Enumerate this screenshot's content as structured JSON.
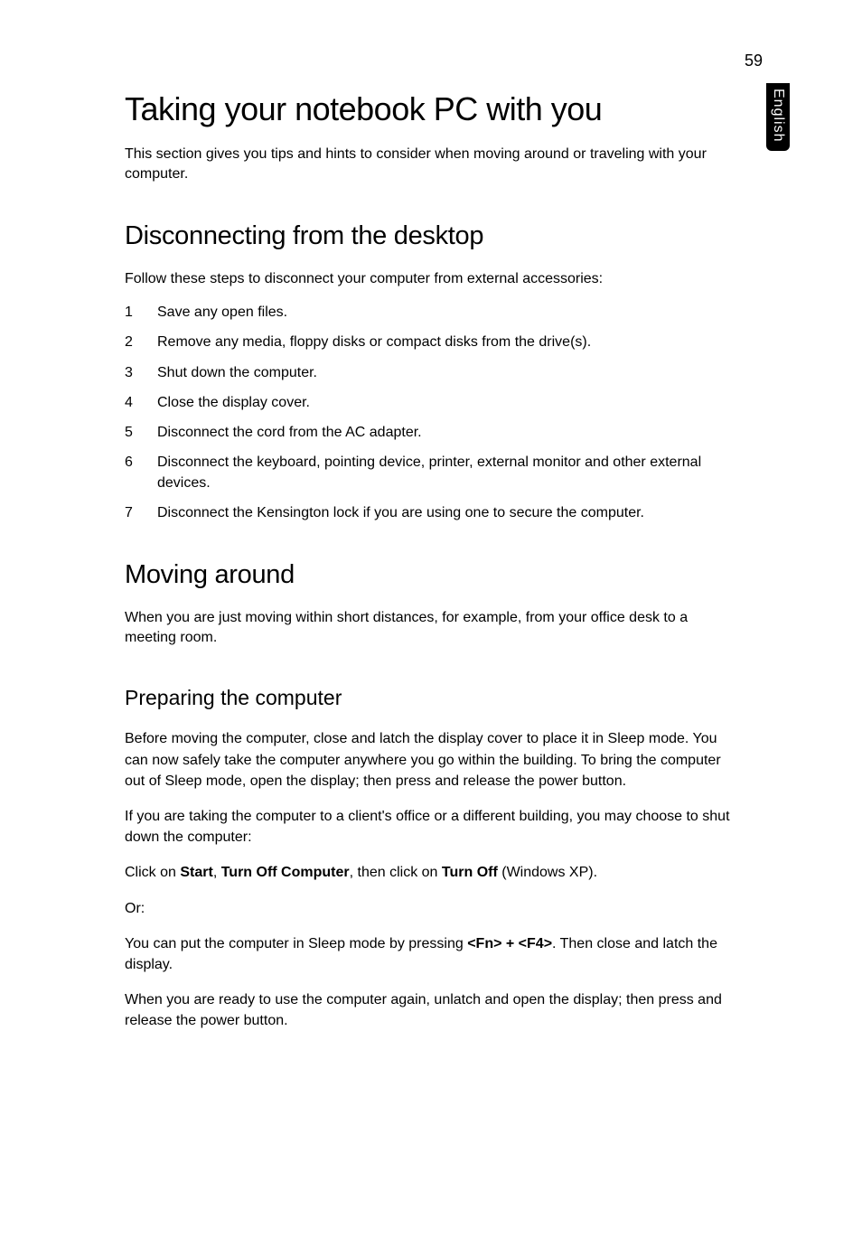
{
  "page_number": "59",
  "side_tab": "English",
  "h1": "Taking your notebook PC with you",
  "intro": "This section gives you tips and hints to consider when moving around or traveling with your computer.",
  "section1": {
    "heading": "Disconnecting from the desktop",
    "lead": "Follow these steps to disconnect your computer from external accessories:",
    "items": [
      {
        "n": "1",
        "t": "Save any open files."
      },
      {
        "n": "2",
        "t": "Remove any media, floppy disks or compact disks from the drive(s)."
      },
      {
        "n": "3",
        "t": "Shut down the computer."
      },
      {
        "n": "4",
        "t": "Close the display cover."
      },
      {
        "n": "5",
        "t": "Disconnect the cord from the AC adapter."
      },
      {
        "n": "6",
        "t": "Disconnect the keyboard, pointing device, printer, external monitor and other external devices."
      },
      {
        "n": "7",
        "t": "Disconnect the Kensington lock if you are using one to secure the computer."
      }
    ]
  },
  "section2": {
    "heading": "Moving around",
    "lead": "When you are just moving within short distances, for example, from your office desk to a meeting room.",
    "sub1": {
      "heading": "Preparing the computer",
      "p1": "Before moving the computer, close and latch the display cover to place it in Sleep mode. You can now safely take the computer anywhere you go within the building. To bring the computer out of Sleep mode, open the display; then press and release the power button.",
      "p2": "If you are taking the computer to a client's office or a different building, you may choose to shut down the computer:",
      "p3_pre": "Click on ",
      "p3_b1": "Start",
      "p3_c1": ", ",
      "p3_b2": "Turn Off Computer",
      "p3_c2": ", then click on ",
      "p3_b3": "Turn Off",
      "p3_post": " (Windows XP).",
      "p4": "Or:",
      "p5_pre": "You can put the computer in Sleep mode by pressing ",
      "p5_b1": "<Fn> + <F4>",
      "p5_post": ". Then close and latch the display.",
      "p6": "When you are ready to use the computer again, unlatch and open the display; then press and release the power button."
    }
  }
}
